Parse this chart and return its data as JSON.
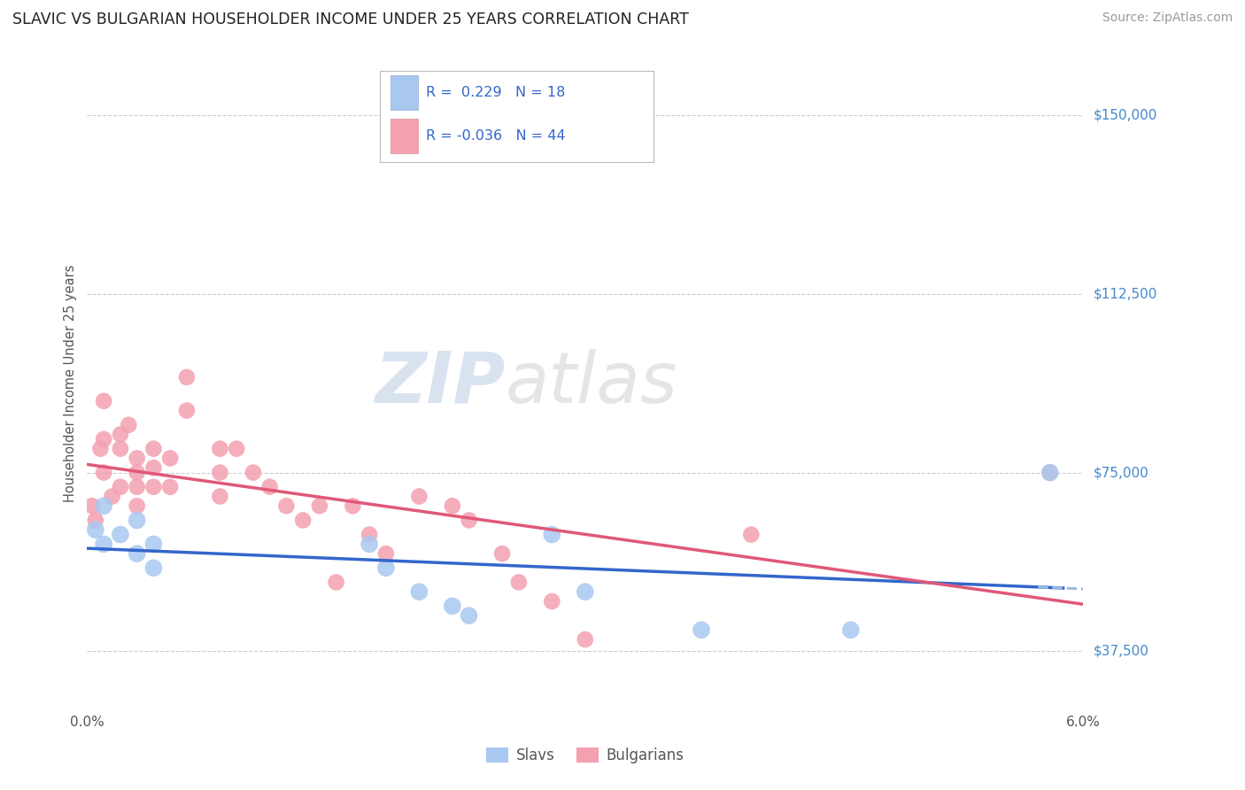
{
  "title": "SLAVIC VS BULGARIAN HOUSEHOLDER INCOME UNDER 25 YEARS CORRELATION CHART",
  "source": "Source: ZipAtlas.com",
  "ylabel": "Householder Income Under 25 years",
  "xlim": [
    0.0,
    0.06
  ],
  "ylim": [
    25000,
    162500
  ],
  "yticks": [
    37500,
    75000,
    112500,
    150000
  ],
  "ytick_labels": [
    "$37,500",
    "$75,000",
    "$112,500",
    "$150,000"
  ],
  "xticks": [
    0.0,
    0.01,
    0.02,
    0.03,
    0.04,
    0.05,
    0.06
  ],
  "xtick_labels": [
    "0.0%",
    "",
    "",
    "",
    "",
    "",
    "6.0%"
  ],
  "slavs_R": 0.229,
  "slavs_N": 18,
  "bulgarians_R": -0.036,
  "bulgarians_N": 44,
  "slav_color": "#A8C8F0",
  "bulgarian_color": "#F4A0B0",
  "slav_line_color": "#3366CC",
  "bulgarian_line_color": "#E05878",
  "legend_text_color": "#3366CC",
  "watermark_zip": "ZIP",
  "watermark_atlas": "atlas",
  "background_color": "#FFFFFF",
  "grid_color": "#CCCCCC",
  "slavs_x": [
    0.0005,
    0.001,
    0.001,
    0.002,
    0.003,
    0.003,
    0.004,
    0.004,
    0.017,
    0.018,
    0.02,
    0.022,
    0.023,
    0.028,
    0.03,
    0.037,
    0.046,
    0.058
  ],
  "slavs_y": [
    63000,
    68000,
    60000,
    62000,
    65000,
    58000,
    60000,
    55000,
    60000,
    55000,
    50000,
    47000,
    45000,
    62000,
    50000,
    42000,
    42000,
    75000
  ],
  "bulgarians_x": [
    0.0003,
    0.0005,
    0.0008,
    0.001,
    0.001,
    0.001,
    0.0015,
    0.002,
    0.002,
    0.002,
    0.0025,
    0.003,
    0.003,
    0.003,
    0.003,
    0.004,
    0.004,
    0.004,
    0.005,
    0.005,
    0.006,
    0.006,
    0.008,
    0.008,
    0.008,
    0.009,
    0.01,
    0.011,
    0.012,
    0.013,
    0.014,
    0.015,
    0.016,
    0.017,
    0.018,
    0.02,
    0.022,
    0.023,
    0.025,
    0.026,
    0.028,
    0.03,
    0.04,
    0.058
  ],
  "bulgarians_y": [
    68000,
    65000,
    80000,
    90000,
    82000,
    75000,
    70000,
    83000,
    80000,
    72000,
    85000,
    78000,
    75000,
    72000,
    68000,
    80000,
    76000,
    72000,
    78000,
    72000,
    95000,
    88000,
    80000,
    75000,
    70000,
    80000,
    75000,
    72000,
    68000,
    65000,
    68000,
    52000,
    68000,
    62000,
    58000,
    70000,
    68000,
    65000,
    58000,
    52000,
    48000,
    40000,
    62000,
    75000
  ]
}
